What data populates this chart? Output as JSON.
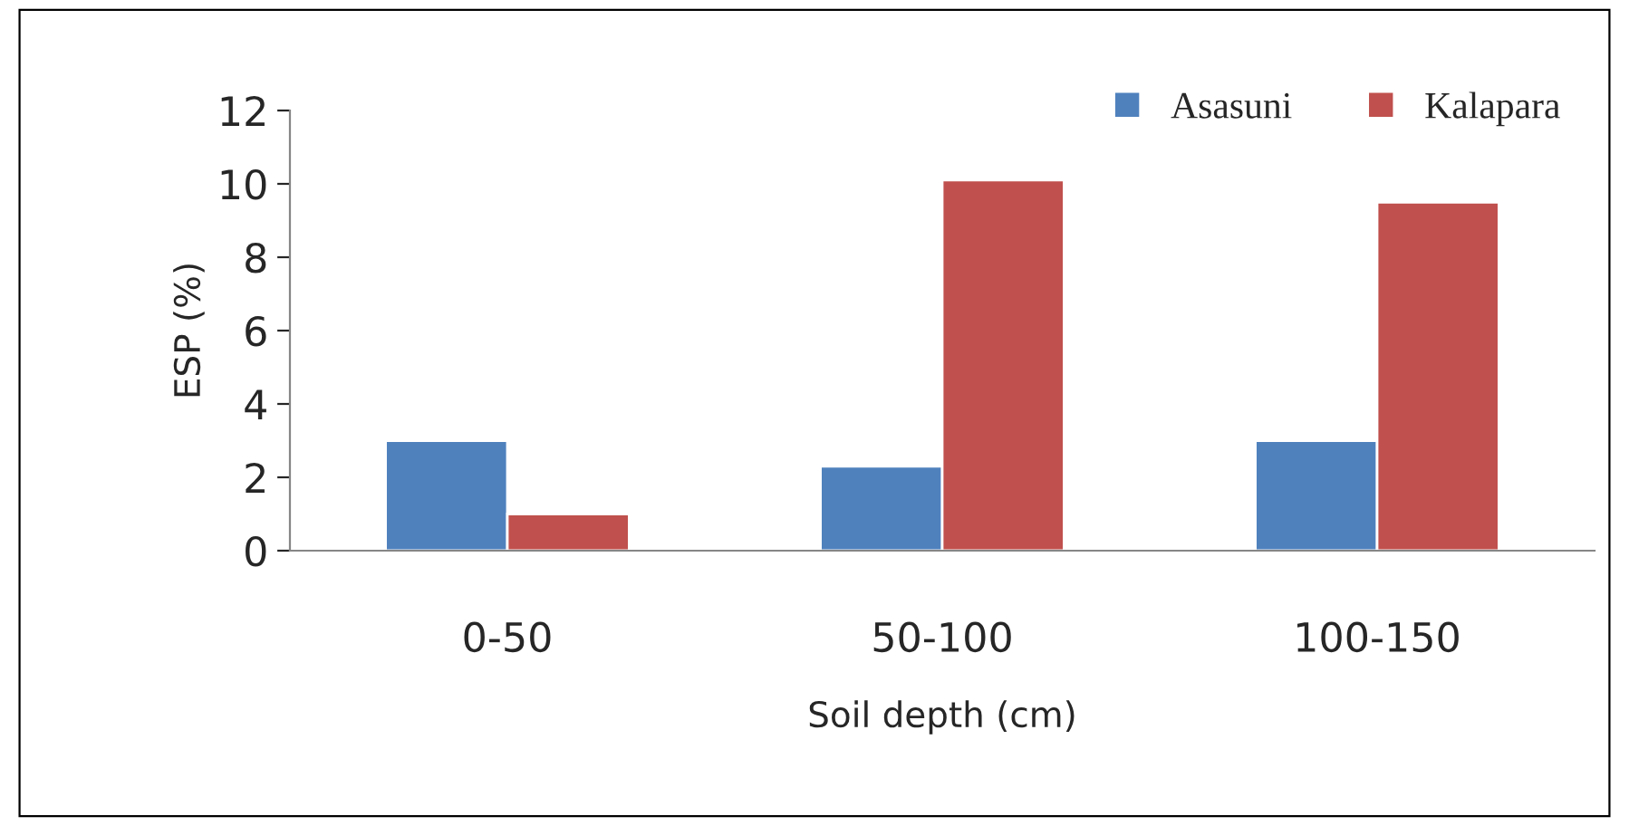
{
  "chart_data": {
    "type": "bar",
    "xlabel": "Soil depth (cm)",
    "ylabel": "ESP (%)",
    "categories": [
      "0-50",
      "50-100",
      "100-150"
    ],
    "series": [
      {
        "name": "Asasuni",
        "color": "#4f81bd",
        "values": [
          3.0,
          2.3,
          3.0
        ]
      },
      {
        "name": "Kalapara",
        "color": "#c0504d",
        "values": [
          1.0,
          10.1,
          9.5
        ]
      }
    ],
    "ylim": [
      0,
      12
    ],
    "yticks": [
      0,
      2,
      4,
      6,
      8,
      10,
      12
    ],
    "grid": false,
    "legend": "top right"
  }
}
